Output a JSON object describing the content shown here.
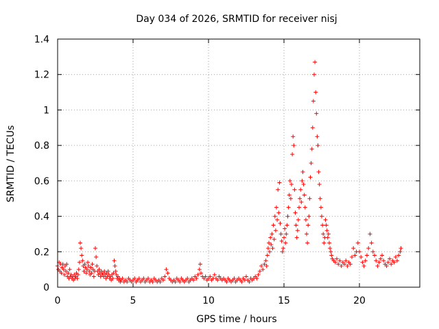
{
  "chart_data": {
    "type": "scatter",
    "title": "Day 034 of 2026, SRMTID for receiver nisj",
    "xlabel": "GPS time / hours",
    "ylabel": "SRMTID / TECUs",
    "xlim": [
      0,
      24
    ],
    "ylim": [
      0,
      1.4
    ],
    "x_ticks": [
      0,
      5,
      10,
      15,
      20
    ],
    "x_tick_labels": [
      "0",
      "5",
      "10",
      "15",
      "20"
    ],
    "y_ticks": [
      0,
      0.2,
      0.4,
      0.6,
      0.8,
      1.0,
      1.2,
      1.4
    ],
    "y_tick_labels": [
      "0",
      "0.2",
      "0.4",
      "0.6",
      "0.8",
      "1",
      "1.2",
      "1.4"
    ],
    "grid": true,
    "marker": "+",
    "color": "#ff0000",
    "series": [
      {
        "name": "SRMTID",
        "points": [
          [
            0.0,
            0.12
          ],
          [
            0.05,
            0.1
          ],
          [
            0.1,
            0.14
          ],
          [
            0.15,
            0.09
          ],
          [
            0.2,
            0.13
          ],
          [
            0.25,
            0.08
          ],
          [
            0.3,
            0.11
          ],
          [
            0.35,
            0.13
          ],
          [
            0.4,
            0.1
          ],
          [
            0.45,
            0.07
          ],
          [
            0.5,
            0.12
          ],
          [
            0.55,
            0.09
          ],
          [
            0.6,
            0.13
          ],
          [
            0.65,
            0.06
          ],
          [
            0.7,
            0.08
          ],
          [
            0.75,
            0.05
          ],
          [
            0.8,
            0.1
          ],
          [
            0.85,
            0.06
          ],
          [
            0.9,
            0.07
          ],
          [
            0.95,
            0.05
          ],
          [
            1.0,
            0.06
          ],
          [
            1.05,
            0.04
          ],
          [
            1.1,
            0.07
          ],
          [
            1.15,
            0.05
          ],
          [
            1.2,
            0.06
          ],
          [
            1.25,
            0.08
          ],
          [
            1.3,
            0.05
          ],
          [
            1.35,
            0.07
          ],
          [
            1.4,
            0.1
          ],
          [
            1.45,
            0.14
          ],
          [
            1.5,
            0.25
          ],
          [
            1.55,
            0.22
          ],
          [
            1.6,
            0.18
          ],
          [
            1.65,
            0.15
          ],
          [
            1.7,
            0.12
          ],
          [
            1.75,
            0.09
          ],
          [
            1.8,
            0.13
          ],
          [
            1.85,
            0.11
          ],
          [
            1.9,
            0.08
          ],
          [
            1.95,
            0.1
          ],
          [
            2.0,
            0.14
          ],
          [
            2.05,
            0.12
          ],
          [
            2.1,
            0.09
          ],
          [
            2.15,
            0.07
          ],
          [
            2.2,
            0.11
          ],
          [
            2.25,
            0.08
          ],
          [
            2.3,
            0.13
          ],
          [
            2.35,
            0.1
          ],
          [
            2.4,
            0.06
          ],
          [
            2.45,
            0.09
          ],
          [
            2.5,
            0.22
          ],
          [
            2.55,
            0.17
          ],
          [
            2.6,
            0.12
          ],
          [
            2.65,
            0.09
          ],
          [
            2.7,
            0.07
          ],
          [
            2.75,
            0.1
          ],
          [
            2.8,
            0.08
          ],
          [
            2.85,
            0.06
          ],
          [
            2.9,
            0.09
          ],
          [
            2.95,
            0.07
          ],
          [
            3.0,
            0.08
          ],
          [
            3.05,
            0.06
          ],
          [
            3.1,
            0.09
          ],
          [
            3.15,
            0.07
          ],
          [
            3.2,
            0.05
          ],
          [
            3.25,
            0.08
          ],
          [
            3.3,
            0.06
          ],
          [
            3.35,
            0.09
          ],
          [
            3.4,
            0.07
          ],
          [
            3.45,
            0.05
          ],
          [
            3.5,
            0.06
          ],
          [
            3.55,
            0.04
          ],
          [
            3.6,
            0.07
          ],
          [
            3.65,
            0.05
          ],
          [
            3.7,
            0.08
          ],
          [
            3.75,
            0.15
          ],
          [
            3.8,
            0.12
          ],
          [
            3.85,
            0.09
          ],
          [
            3.9,
            0.07
          ],
          [
            3.95,
            0.05
          ],
          [
            4.0,
            0.06
          ],
          [
            4.05,
            0.04
          ],
          [
            4.1,
            0.05
          ],
          [
            4.15,
            0.03
          ],
          [
            4.2,
            0.04
          ],
          [
            4.3,
            0.05
          ],
          [
            4.4,
            0.03
          ],
          [
            4.5,
            0.04
          ],
          [
            4.6,
            0.03
          ],
          [
            4.7,
            0.05
          ],
          [
            4.8,
            0.04
          ],
          [
            4.9,
            0.03
          ],
          [
            5.0,
            0.04
          ],
          [
            5.1,
            0.05
          ],
          [
            5.2,
            0.03
          ],
          [
            5.3,
            0.04
          ],
          [
            5.4,
            0.05
          ],
          [
            5.5,
            0.03
          ],
          [
            5.6,
            0.04
          ],
          [
            5.7,
            0.05
          ],
          [
            5.8,
            0.03
          ],
          [
            5.9,
            0.04
          ],
          [
            6.0,
            0.05
          ],
          [
            6.1,
            0.03
          ],
          [
            6.2,
            0.04
          ],
          [
            6.3,
            0.03
          ],
          [
            6.4,
            0.05
          ],
          [
            6.5,
            0.04
          ],
          [
            6.6,
            0.03
          ],
          [
            6.7,
            0.04
          ],
          [
            6.8,
            0.03
          ],
          [
            6.9,
            0.05
          ],
          [
            7.0,
            0.04
          ],
          [
            7.1,
            0.06
          ],
          [
            7.2,
            0.1
          ],
          [
            7.3,
            0.08
          ],
          [
            7.4,
            0.05
          ],
          [
            7.5,
            0.04
          ],
          [
            7.6,
            0.03
          ],
          [
            7.7,
            0.04
          ],
          [
            7.8,
            0.03
          ],
          [
            7.9,
            0.05
          ],
          [
            8.0,
            0.04
          ],
          [
            8.1,
            0.03
          ],
          [
            8.2,
            0.05
          ],
          [
            8.3,
            0.04
          ],
          [
            8.4,
            0.03
          ],
          [
            8.5,
            0.04
          ],
          [
            8.6,
            0.05
          ],
          [
            8.7,
            0.03
          ],
          [
            8.8,
            0.04
          ],
          [
            8.9,
            0.05
          ],
          [
            9.0,
            0.04
          ],
          [
            9.1,
            0.06
          ],
          [
            9.2,
            0.05
          ],
          [
            9.3,
            0.07
          ],
          [
            9.4,
            0.1
          ],
          [
            9.45,
            0.13
          ],
          [
            9.5,
            0.08
          ],
          [
            9.6,
            0.06
          ],
          [
            9.7,
            0.05
          ],
          [
            9.8,
            0.06
          ],
          [
            9.9,
            0.04
          ],
          [
            10.0,
            0.05
          ],
          [
            10.1,
            0.06
          ],
          [
            10.2,
            0.04
          ],
          [
            10.3,
            0.05
          ],
          [
            10.4,
            0.07
          ],
          [
            10.5,
            0.05
          ],
          [
            10.6,
            0.04
          ],
          [
            10.7,
            0.06
          ],
          [
            10.8,
            0.05
          ],
          [
            10.9,
            0.04
          ],
          [
            11.0,
            0.05
          ],
          [
            11.1,
            0.04
          ],
          [
            11.2,
            0.03
          ],
          [
            11.3,
            0.05
          ],
          [
            11.4,
            0.04
          ],
          [
            11.5,
            0.03
          ],
          [
            11.6,
            0.04
          ],
          [
            11.7,
            0.05
          ],
          [
            11.8,
            0.03
          ],
          [
            11.9,
            0.04
          ],
          [
            12.0,
            0.05
          ],
          [
            12.1,
            0.04
          ],
          [
            12.2,
            0.03
          ],
          [
            12.3,
            0.05
          ],
          [
            12.4,
            0.04
          ],
          [
            12.5,
            0.06
          ],
          [
            12.6,
            0.04
          ],
          [
            12.7,
            0.03
          ],
          [
            12.8,
            0.05
          ],
          [
            12.9,
            0.04
          ],
          [
            13.0,
            0.05
          ],
          [
            13.1,
            0.06
          ],
          [
            13.2,
            0.05
          ],
          [
            13.3,
            0.07
          ],
          [
            13.4,
            0.09
          ],
          [
            13.5,
            0.12
          ],
          [
            13.6,
            0.1
          ],
          [
            13.7,
            0.13
          ],
          [
            13.8,
            0.15
          ],
          [
            13.85,
            0.12
          ],
          [
            13.9,
            0.18
          ],
          [
            13.95,
            0.22
          ],
          [
            14.0,
            0.25
          ],
          [
            14.05,
            0.2
          ],
          [
            14.1,
            0.28
          ],
          [
            14.15,
            0.24
          ],
          [
            14.2,
            0.3
          ],
          [
            14.25,
            0.22
          ],
          [
            14.3,
            0.35
          ],
          [
            14.35,
            0.27
          ],
          [
            14.4,
            0.4
          ],
          [
            14.45,
            0.32
          ],
          [
            14.5,
            0.45
          ],
          [
            14.55,
            0.38
          ],
          [
            14.6,
            0.55
          ],
          [
            14.65,
            0.42
          ],
          [
            14.7,
            0.59
          ],
          [
            14.75,
            0.36
          ],
          [
            14.8,
            0.3
          ],
          [
            14.85,
            0.26
          ],
          [
            14.9,
            0.2
          ],
          [
            14.95,
            0.22
          ],
          [
            15.0,
            0.28
          ],
          [
            15.05,
            0.33
          ],
          [
            15.1,
            0.25
          ],
          [
            15.15,
            0.3
          ],
          [
            15.2,
            0.35
          ],
          [
            15.25,
            0.4
          ],
          [
            15.3,
            0.45
          ],
          [
            15.35,
            0.52
          ],
          [
            15.4,
            0.6
          ],
          [
            15.45,
            0.5
          ],
          [
            15.5,
            0.58
          ],
          [
            15.55,
            0.75
          ],
          [
            15.6,
            0.85
          ],
          [
            15.65,
            0.8
          ],
          [
            15.7,
            0.55
          ],
          [
            15.75,
            0.42
          ],
          [
            15.8,
            0.35
          ],
          [
            15.85,
            0.28
          ],
          [
            15.9,
            0.32
          ],
          [
            15.95,
            0.38
          ],
          [
            16.0,
            0.45
          ],
          [
            16.05,
            0.5
          ],
          [
            16.1,
            0.55
          ],
          [
            16.15,
            0.48
          ],
          [
            16.2,
            0.6
          ],
          [
            16.25,
            0.65
          ],
          [
            16.3,
            0.58
          ],
          [
            16.35,
            0.52
          ],
          [
            16.4,
            0.45
          ],
          [
            16.45,
            0.38
          ],
          [
            16.5,
            0.3
          ],
          [
            16.55,
            0.25
          ],
          [
            16.6,
            0.35
          ],
          [
            16.65,
            0.4
          ],
          [
            16.7,
            0.5
          ],
          [
            16.75,
            0.62
          ],
          [
            16.8,
            0.7
          ],
          [
            16.85,
            0.78
          ],
          [
            16.9,
            0.9
          ],
          [
            16.95,
            1.05
          ],
          [
            17.0,
            1.2
          ],
          [
            17.05,
            1.27
          ],
          [
            17.1,
            1.1
          ],
          [
            17.15,
            0.98
          ],
          [
            17.2,
            0.85
          ],
          [
            17.25,
            0.8
          ],
          [
            17.3,
            0.65
          ],
          [
            17.35,
            0.58
          ],
          [
            17.4,
            0.5
          ],
          [
            17.45,
            0.45
          ],
          [
            17.5,
            0.4
          ],
          [
            17.55,
            0.35
          ],
          [
            17.6,
            0.3
          ],
          [
            17.65,
            0.25
          ],
          [
            17.7,
            0.28
          ],
          [
            17.75,
            0.38
          ],
          [
            17.8,
            0.35
          ],
          [
            17.85,
            0.32
          ],
          [
            17.9,
            0.28
          ],
          [
            17.95,
            0.3
          ],
          [
            18.0,
            0.25
          ],
          [
            18.05,
            0.22
          ],
          [
            18.1,
            0.2
          ],
          [
            18.15,
            0.18
          ],
          [
            18.2,
            0.16
          ],
          [
            18.3,
            0.15
          ],
          [
            18.4,
            0.14
          ],
          [
            18.5,
            0.16
          ],
          [
            18.6,
            0.13
          ],
          [
            18.7,
            0.15
          ],
          [
            18.8,
            0.12
          ],
          [
            18.9,
            0.14
          ],
          [
            19.0,
            0.13
          ],
          [
            19.1,
            0.15
          ],
          [
            19.2,
            0.12
          ],
          [
            19.3,
            0.14
          ],
          [
            19.4,
            0.13
          ],
          [
            19.5,
            0.17
          ],
          [
            19.6,
            0.22
          ],
          [
            19.7,
            0.18
          ],
          [
            19.8,
            0.2
          ],
          [
            19.9,
            0.25
          ],
          [
            20.0,
            0.2
          ],
          [
            20.1,
            0.17
          ],
          [
            20.2,
            0.14
          ],
          [
            20.3,
            0.12
          ],
          [
            20.4,
            0.15
          ],
          [
            20.5,
            0.18
          ],
          [
            20.6,
            0.22
          ],
          [
            20.7,
            0.3
          ],
          [
            20.8,
            0.25
          ],
          [
            20.9,
            0.2
          ],
          [
            21.0,
            0.18
          ],
          [
            21.1,
            0.15
          ],
          [
            21.2,
            0.12
          ],
          [
            21.3,
            0.14
          ],
          [
            21.4,
            0.16
          ],
          [
            21.5,
            0.18
          ],
          [
            21.6,
            0.15
          ],
          [
            21.7,
            0.13
          ],
          [
            21.8,
            0.12
          ],
          [
            21.9,
            0.14
          ],
          [
            22.0,
            0.16
          ],
          [
            22.1,
            0.13
          ],
          [
            22.2,
            0.15
          ],
          [
            22.3,
            0.14
          ],
          [
            22.4,
            0.17
          ],
          [
            22.5,
            0.15
          ],
          [
            22.6,
            0.18
          ],
          [
            22.7,
            0.2
          ],
          [
            22.75,
            0.22
          ]
        ]
      }
    ]
  }
}
